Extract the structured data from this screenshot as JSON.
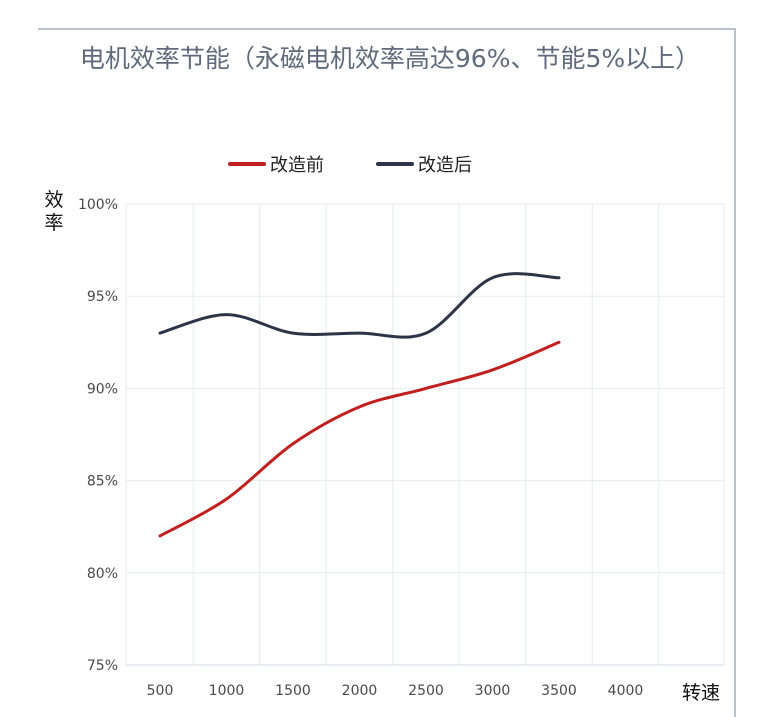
{
  "chart_data": {
    "type": "line",
    "title": "电机效率节能（永磁电机效率高达96%、节能5%以上）",
    "xlabel": "转速",
    "ylabel": "效率",
    "categories": [
      500,
      1000,
      1500,
      2000,
      2500,
      3000,
      3500,
      4000
    ],
    "x_tick_labels": [
      "500",
      "1000",
      "1500",
      "2000",
      "2500",
      "3000",
      "3500",
      "4000"
    ],
    "y_tick_labels": [
      "75%",
      "80%",
      "85%",
      "90%",
      "95%",
      "100%"
    ],
    "y_ticks": [
      75,
      80,
      85,
      90,
      95,
      100
    ],
    "ylim": [
      75,
      100
    ],
    "xlim": [
      500,
      4000
    ],
    "grid": true,
    "legend_position": "top",
    "series": [
      {
        "name": "改造前",
        "color": "#c21f1f",
        "points": [
          {
            "x": 500,
            "y": 82.0
          },
          {
            "x": 1000,
            "y": 84.0
          },
          {
            "x": 1500,
            "y": 87.0
          },
          {
            "x": 2000,
            "y": 89.0
          },
          {
            "x": 2500,
            "y": 90.0
          },
          {
            "x": 3000,
            "y": 91.0
          },
          {
            "x": 3500,
            "y": 92.5
          }
        ]
      },
      {
        "name": "改造后",
        "color": "#2d3447",
        "points": [
          {
            "x": 500,
            "y": 93.0
          },
          {
            "x": 1000,
            "y": 94.0
          },
          {
            "x": 1500,
            "y": 93.0
          },
          {
            "x": 2000,
            "y": 93.0
          },
          {
            "x": 2500,
            "y": 93.0
          },
          {
            "x": 3000,
            "y": 96.0
          },
          {
            "x": 3500,
            "y": 96.0
          }
        ]
      }
    ]
  }
}
